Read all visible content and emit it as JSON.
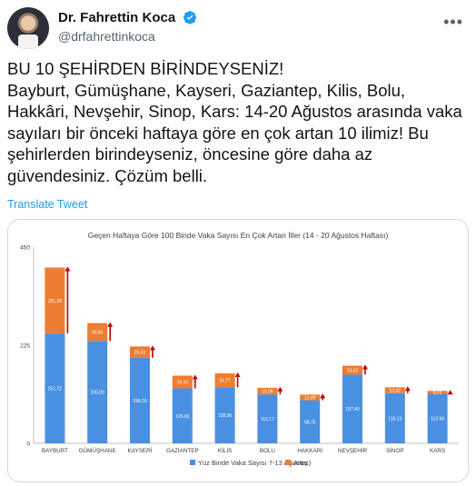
{
  "author": {
    "display_name": "Dr. Fahrettin Koca",
    "handle": "@drfahrettinkoca"
  },
  "icons": {
    "verified": "verified-badge-icon",
    "more": "more-options-icon"
  },
  "tweet": {
    "text": "BU 10 ŞEHİRDEN BİRİNDEYSENİZ!\nBayburt, Gümüşhane, Kayseri, Gaziantep, Kilis, Bolu, Hakkâri, Nevşehir, Sinop, Kars: 14-20 Ağustos arasında vaka sayıları bir önceki haftaya göre en çok artan 10 ilimiz! Bu şehirlerden birindeyseniz, öncesine göre daha az güvendesiniz. Çözüm belli.",
    "translate_label": "Translate Tweet"
  },
  "colors": {
    "base": "#4a90e2",
    "increase": "#ed7d31",
    "arrow": "#c00000",
    "link": "#1d9bf0"
  },
  "chart_data": {
    "type": "bar",
    "stacked": true,
    "title": "Geçen Haftaya Göre 100 Binde Vaka Sayısı En Çok Artan İller (14 - 20 Ağustos Haftası)",
    "categories": [
      "BAYBURT",
      "GÜMÜŞHANE",
      "KAYSERİ",
      "GAZİANTEP",
      "KİLİS",
      "BOLU",
      "HAKKARİ",
      "NEVŞEHİR",
      "SİNOP",
      "KARS"
    ],
    "ylim": [
      0,
      450
    ],
    "yticks": [
      0,
      225,
      450
    ],
    "grid": false,
    "legend_position": "bottom",
    "series": [
      {
        "name": "Yüz Binde Vaka Sayısı 7-13 Ağustos)",
        "values": [
          251.72,
          235.0,
          196.16,
          126.0,
          128.56,
          112.17,
          98.75,
          157.4,
          115.13,
          113.56
        ]
      },
      {
        "name": "Artış",
        "values": [
          151.39,
          40.65,
          26.02,
          29.13,
          31.77,
          15.06,
          13.0,
          20.61,
          13.42,
          6.72
        ]
      }
    ],
    "data_labels": [
      [
        "251,72",
        "235,00",
        "196,16",
        "126,00",
        "128,56",
        "112,17",
        "98,75",
        "157,40",
        "115,13",
        "113,56"
      ],
      [
        "151,39",
        "40,65",
        "26,02",
        "29,13",
        "31,77",
        "15,06",
        "13,00",
        "20,61",
        "13,42",
        "6,72"
      ]
    ]
  }
}
